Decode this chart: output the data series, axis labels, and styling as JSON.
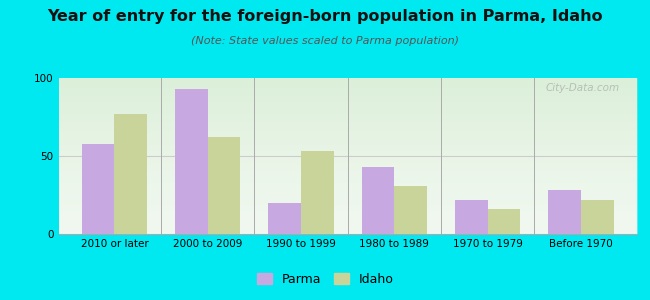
{
  "title": "Year of entry for the foreign-born population in Parma, Idaho",
  "subtitle": "(Note: State values scaled to Parma population)",
  "categories": [
    "2010 or later",
    "2000 to 2009",
    "1990 to 1999",
    "1980 to 1989",
    "1970 to 1979",
    "Before 1970"
  ],
  "parma_values": [
    58,
    93,
    20,
    43,
    22,
    28
  ],
  "idaho_values": [
    77,
    62,
    53,
    31,
    16,
    22
  ],
  "parma_color": "#c8a8e0",
  "idaho_color": "#c8d49a",
  "ylim": [
    0,
    100
  ],
  "yticks": [
    0,
    50,
    100
  ],
  "background_color": "#00e8f0",
  "plot_bg_color": "#eef6ee",
  "grid_color": "#cccccc",
  "watermark": "City-Data.com",
  "bar_width": 0.35,
  "title_fontsize": 11.5,
  "subtitle_fontsize": 8,
  "legend_fontsize": 9,
  "tick_fontsize": 7.5
}
